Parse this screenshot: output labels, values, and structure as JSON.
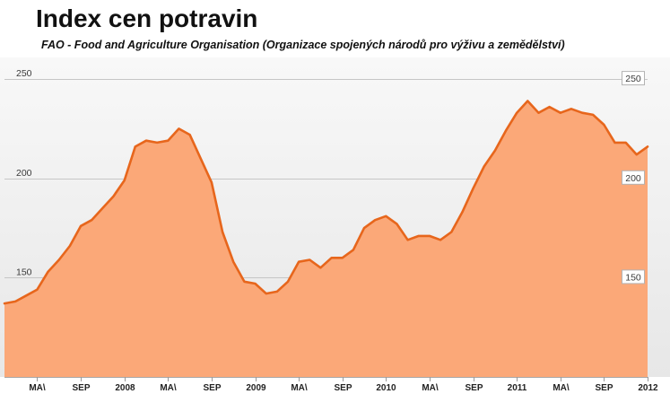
{
  "chart_data": {
    "type": "area",
    "title": "Index cen potravin",
    "subtitle": "FAO - Food and Agriculture Organisation (Organizace spojených národů pro výživu a zemědělství)",
    "x": [
      "2007-02",
      "2007-03",
      "2007-04",
      "2007-05",
      "2007-06",
      "2007-07",
      "2007-08",
      "2007-09",
      "2007-10",
      "2007-11",
      "2007-12",
      "2008-01",
      "2008-02",
      "2008-03",
      "2008-04",
      "2008-05",
      "2008-06",
      "2008-07",
      "2008-08",
      "2008-09",
      "2008-10",
      "2008-11",
      "2008-12",
      "2009-01",
      "2009-02",
      "2009-03",
      "2009-04",
      "2009-05",
      "2009-06",
      "2009-07",
      "2009-08",
      "2009-09",
      "2009-10",
      "2009-11",
      "2009-12",
      "2010-01",
      "2010-02",
      "2010-03",
      "2010-04",
      "2010-05",
      "2010-06",
      "2010-07",
      "2010-08",
      "2010-09",
      "2010-10",
      "2010-11",
      "2010-12",
      "2011-01",
      "2011-02",
      "2011-03",
      "2011-04",
      "2011-05",
      "2011-06",
      "2011-07",
      "2011-08",
      "2011-09",
      "2011-10",
      "2011-11",
      "2011-12",
      "2012-01"
    ],
    "series": [
      {
        "values": [
          137,
          138,
          141,
          144,
          153,
          159,
          166,
          176,
          179,
          185,
          191,
          199,
          216,
          219,
          218,
          219,
          225,
          222,
          210,
          198,
          173,
          158,
          148,
          147,
          142,
          143,
          148,
          158,
          159,
          155,
          160,
          160,
          164,
          175,
          179,
          181,
          177,
          169,
          171,
          171,
          169,
          173,
          183,
          195,
          206,
          214,
          224,
          233,
          239,
          233,
          236,
          233,
          235,
          233,
          232,
          227,
          218,
          218,
          212,
          216
        ]
      }
    ],
    "xlim": [
      "2007-02",
      "2012-01"
    ],
    "ylim": [
      100,
      260
    ],
    "y_ticks": [
      150,
      200,
      250
    ],
    "x_ticks": [
      {
        "x": "2007-05",
        "label": "MA\\"
      },
      {
        "x": "2007-09",
        "label": "SEP"
      },
      {
        "x": "2008-01",
        "label": "2008"
      },
      {
        "x": "2008-05",
        "label": "MA\\"
      },
      {
        "x": "2008-09",
        "label": "SEP"
      },
      {
        "x": "2009-01",
        "label": "2009"
      },
      {
        "x": "2009-05",
        "label": "MA\\"
      },
      {
        "x": "2009-09",
        "label": "SEP"
      },
      {
        "x": "2010-01",
        "label": "2010"
      },
      {
        "x": "2010-05",
        "label": "MA\\"
      },
      {
        "x": "2010-09",
        "label": "SEP"
      },
      {
        "x": "2011-01",
        "label": "2011"
      },
      {
        "x": "2011-05",
        "label": "MA\\"
      },
      {
        "x": "2011-09",
        "label": "SEP"
      },
      {
        "x": "2012-01",
        "label": "2012"
      }
    ],
    "grid": true,
    "colors": {
      "area_fill": "#fba878",
      "line": "#e7661c",
      "grid": "#c6c6c6"
    }
  }
}
